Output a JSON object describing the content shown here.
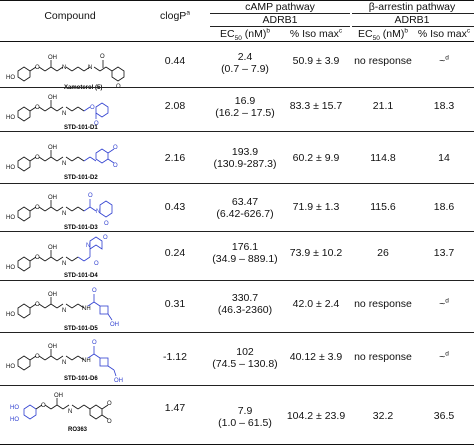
{
  "header": {
    "compound": "Compound",
    "clogp": "clogP",
    "clogp_sup": "a",
    "camp_pathway": "cAMP pathway",
    "arrestin_pathway": "β-arrestin pathway",
    "camp_receptor": "ADRB1",
    "arrestin_receptor": "ADRB1",
    "ec50_prefix": "EC",
    "ec50_sub": "50",
    "ec50_suffix": " (nM)",
    "ec50_sup": "b",
    "iso_max": "% Iso max",
    "iso_sup": "c",
    "ec50_prefix_2": "EC",
    "ec50_sub_2": "50",
    "ec50_suffix_2": " (nM)",
    "ec50_sup_2": "b",
    "iso_max_2": "% Iso max",
    "iso_sup_2": "c"
  },
  "rows": [
    {
      "name": "Xamoterol (5)",
      "clogp": "0.44",
      "camp_ec50": "2.4",
      "camp_ci": "(0.7 – 7.9)",
      "camp_iso": "50.9 ± 3.9",
      "arr_ec50": "no response",
      "arr_iso": "~",
      "arr_iso_sup": "d"
    },
    {
      "name": "STD-101-D1",
      "clogp": "2.08",
      "camp_ec50": "16.9",
      "camp_ci": "(16.2 – 17.5)",
      "camp_iso": "83.3 ± 15.7",
      "arr_ec50": "21.1",
      "arr_iso": "18.3",
      "arr_iso_sup": ""
    },
    {
      "name": "STD-101-D2",
      "clogp": "2.16",
      "camp_ec50": "193.9",
      "camp_ci": "(130.9-287.3)",
      "camp_iso": "60.2 ± 9.9",
      "arr_ec50": "114.8",
      "arr_iso": "14",
      "arr_iso_sup": ""
    },
    {
      "name": "STD-101-D3",
      "clogp": "0.43",
      "camp_ec50": "63.47",
      "camp_ci": "(6.42-626.7)",
      "camp_iso": "71.9 ± 1.3",
      "arr_ec50": "115.6",
      "arr_iso": "18.6",
      "arr_iso_sup": ""
    },
    {
      "name": "STD-101-D4",
      "clogp": "0.24",
      "camp_ec50": "176.1",
      "camp_ci": "(34.9 – 889.1)",
      "camp_iso": "73.9 ± 10.2",
      "arr_ec50": "26",
      "arr_iso": "13.7",
      "arr_iso_sup": ""
    },
    {
      "name": "STD-101-D5",
      "clogp": "0.31",
      "camp_ec50": "330.7",
      "camp_ci": "(46.3-2360)",
      "camp_iso": "42.0 ± 2.4",
      "arr_ec50": "no response",
      "arr_iso": "~",
      "arr_iso_sup": "d"
    },
    {
      "name": "STD-101-D6",
      "clogp": "-1.12",
      "camp_ec50": "102",
      "camp_ci": "(74.5 – 130.8)",
      "camp_iso": "40.12 ± 3.9",
      "arr_ec50": "no response",
      "arr_iso": "~",
      "arr_iso_sup": "d"
    },
    {
      "name": "RO363",
      "clogp": "1.47",
      "camp_ec50": "7.9",
      "camp_ci": "(1.0 – 61.5)",
      "camp_iso": "104.2 ± 23.9",
      "arr_ec50": "32.2",
      "arr_iso": "36.5",
      "arr_iso_sup": ""
    }
  ],
  "atoms": {
    "ho": "HO",
    "oh": "OH",
    "o": "O",
    "n": "N",
    "h": "H",
    "nh": "NH"
  },
  "colors": {
    "text": "#111111",
    "rules": "#222222",
    "highlight": "#2f3fd0"
  }
}
